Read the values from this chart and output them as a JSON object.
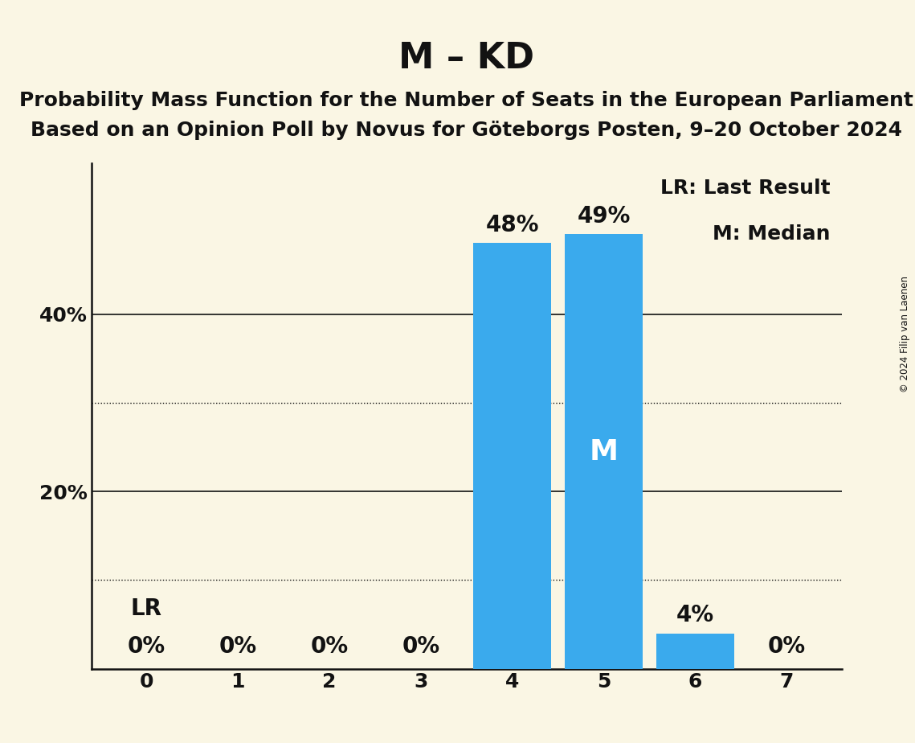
{
  "title": "M – KD",
  "subtitle_line1": "Probability Mass Function for the Number of Seats in the European Parliament",
  "subtitle_line2": "Based on an Opinion Poll by Novus for Göteborgs Posten, 9–20 October 2024",
  "copyright": "© 2024 Filip van Laenen",
  "categories": [
    0,
    1,
    2,
    3,
    4,
    5,
    6,
    7
  ],
  "values": [
    0,
    0,
    0,
    0,
    48,
    49,
    4,
    0
  ],
  "bar_color": "#3aaaed",
  "background_color": "#faf6e4",
  "text_color": "#121212",
  "yticks": [
    20,
    40
  ],
  "dotted_lines": [
    10,
    30
  ],
  "lr_seat": 0,
  "median_seat": 5,
  "legend_lr": "LR: Last Result",
  "legend_m": "M: Median",
  "ylim": [
    0,
    57
  ],
  "bar_label_fontsize": 20,
  "title_fontsize": 32,
  "subtitle_fontsize": 18,
  "axis_tick_fontsize": 18,
  "ytick_fontsize": 18,
  "legend_fontsize": 18,
  "M_fontsize": 26
}
